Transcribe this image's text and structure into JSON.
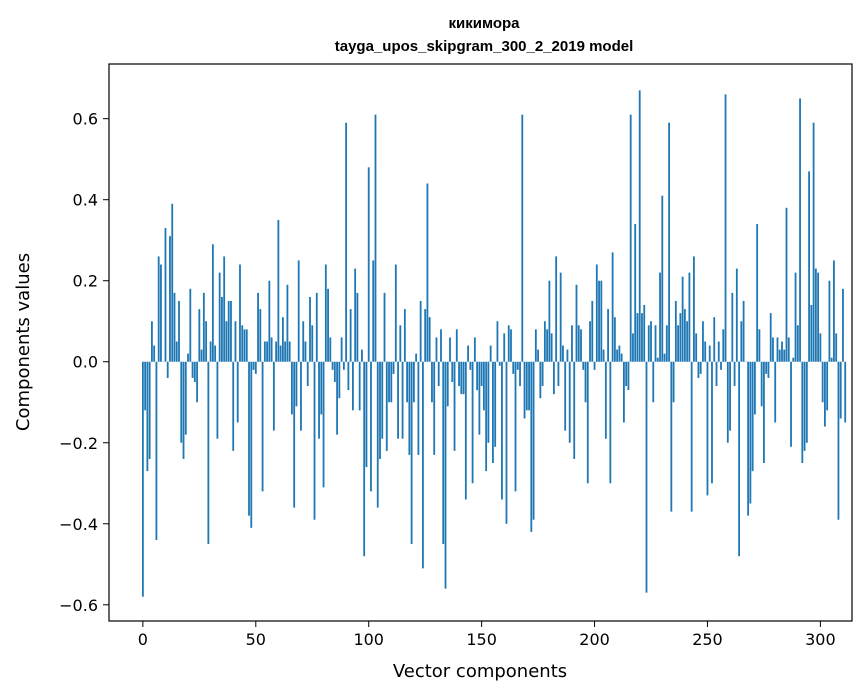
{
  "chart_data": {
    "type": "bar",
    "title": "кикимора",
    "subtitle": "tayga_upos_skipgram_300_2_2019 model",
    "xlabel": "Vector components",
    "ylabel": "Components values",
    "xlim": [
      -15,
      314
    ],
    "ylim": [
      -0.64,
      0.735
    ],
    "xticks": [
      0,
      50,
      100,
      150,
      200,
      250,
      300
    ],
    "yticks": [
      -0.6,
      -0.4,
      -0.2,
      0.0,
      0.2,
      0.4,
      0.6
    ],
    "ytick_labels": [
      "−0.6",
      "−0.4",
      "−0.2",
      "0.0",
      "0.2",
      "0.4",
      "0.6"
    ],
    "bar_color": "#1f77b4",
    "grid": false,
    "legend": "none",
    "values": [
      -0.58,
      -0.12,
      -0.27,
      -0.24,
      0.1,
      0.04,
      -0.44,
      0.26,
      0.24,
      0.0,
      0.33,
      -0.04,
      0.31,
      0.39,
      0.17,
      0.05,
      0.15,
      -0.2,
      -0.24,
      -0.18,
      0.02,
      0.18,
      -0.04,
      -0.05,
      -0.1,
      0.13,
      0.03,
      0.17,
      0.1,
      -0.45,
      0.05,
      0.29,
      0.04,
      -0.19,
      0.22,
      0.16,
      0.26,
      0.1,
      0.15,
      0.15,
      -0.22,
      0.1,
      -0.15,
      0.24,
      0.09,
      0.08,
      0.08,
      -0.38,
      -0.41,
      -0.02,
      -0.03,
      0.17,
      0.13,
      -0.32,
      0.05,
      0.05,
      0.2,
      0.06,
      -0.17,
      0.05,
      0.35,
      0.04,
      0.11,
      0.05,
      0.19,
      0.05,
      -0.13,
      -0.36,
      -0.11,
      0.25,
      -0.17,
      0.1,
      0.05,
      -0.06,
      0.16,
      0.09,
      -0.39,
      0.17,
      -0.19,
      -0.13,
      -0.31,
      0.24,
      0.18,
      0.06,
      -0.02,
      -0.05,
      -0.18,
      -0.09,
      0.06,
      -0.02,
      0.59,
      -0.07,
      0.13,
      -0.12,
      0.23,
      0.17,
      -0.12,
      0.03,
      -0.48,
      -0.26,
      0.48,
      -0.32,
      0.25,
      0.61,
      -0.36,
      -0.24,
      -0.19,
      0.17,
      -0.22,
      -0.1,
      -0.1,
      -0.03,
      0.24,
      -0.19,
      0.09,
      -0.19,
      0.13,
      -0.1,
      -0.23,
      -0.45,
      -0.1,
      0.02,
      -0.23,
      0.15,
      -0.51,
      0.13,
      0.44,
      0.11,
      -0.1,
      -0.23,
      0.06,
      -0.06,
      0.08,
      -0.45,
      -0.56,
      -0.11,
      0.06,
      -0.05,
      -0.22,
      0.08,
      -0.06,
      -0.08,
      -0.08,
      -0.34,
      0.04,
      -0.02,
      -0.3,
      0.06,
      -0.07,
      -0.18,
      -0.06,
      -0.12,
      -0.27,
      -0.2,
      0.04,
      -0.25,
      -0.21,
      0.1,
      -0.01,
      -0.34,
      0.07,
      -0.4,
      0.09,
      0.08,
      -0.03,
      -0.32,
      -0.02,
      -0.06,
      0.61,
      -0.14,
      -0.12,
      -0.12,
      -0.42,
      -0.39,
      0.08,
      0.03,
      -0.09,
      -0.06,
      0.1,
      0.08,
      0.2,
      0.07,
      -0.08,
      0.26,
      -0.06,
      0.22,
      0.04,
      -0.17,
      0.03,
      -0.2,
      0.09,
      -0.24,
      0.19,
      0.09,
      0.08,
      -0.02,
      -0.1,
      -0.3,
      0.1,
      0.15,
      -0.02,
      0.24,
      0.2,
      0.2,
      0.03,
      -0.19,
      0.13,
      -0.3,
      0.27,
      0.11,
      0.03,
      0.04,
      0.02,
      -0.15,
      -0.06,
      -0.07,
      0.61,
      0.07,
      0.34,
      0.12,
      0.67,
      0.12,
      0.14,
      -0.57,
      0.09,
      0.1,
      -0.1,
      0.09,
      0.01,
      0.22,
      0.41,
      0.02,
      0.09,
      0.59,
      -0.37,
      -0.1,
      0.15,
      0.09,
      0.12,
      0.21,
      0.13,
      0.1,
      0.22,
      -0.37,
      0.26,
      0.07,
      -0.04,
      -0.03,
      0.1,
      0.05,
      -0.33,
      0.04,
      -0.3,
      0.11,
      -0.06,
      0.05,
      -0.02,
      0.08,
      0.66,
      -0.2,
      -0.17,
      0.17,
      -0.06,
      0.23,
      -0.48,
      0.1,
      0.15,
      0.0,
      -0.38,
      -0.35,
      -0.27,
      -0.13,
      0.34,
      0.08,
      -0.11,
      -0.25,
      -0.03,
      -0.04,
      0.12,
      0.06,
      -0.15,
      0.06,
      0.03,
      0.05,
      0.03,
      0.38,
      0.06,
      -0.21,
      0.01,
      0.22,
      0.09,
      0.65,
      -0.25,
      -0.22,
      -0.2,
      0.47,
      0.14,
      0.59,
      0.23,
      0.22,
      0.07,
      -0.1,
      -0.16,
      -0.12,
      0.2,
      0.01,
      0.25,
      0.07,
      -0.39,
      -0.14,
      0.18,
      -0.15
    ]
  }
}
